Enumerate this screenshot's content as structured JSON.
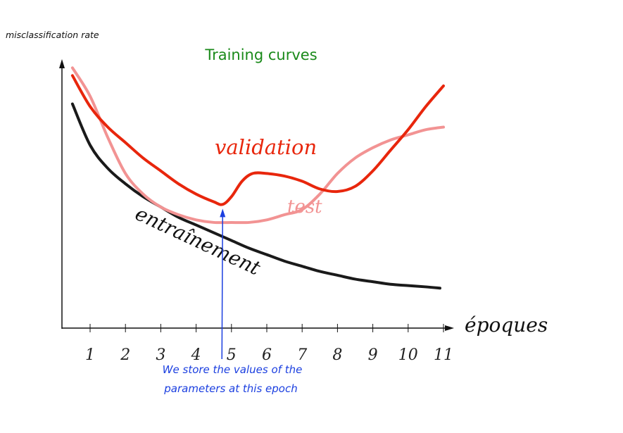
{
  "chart_data": {
    "type": "line",
    "title": "Training curves",
    "ylabel": "misclassification rate",
    "xlabel": "époques",
    "x_ticks": [
      "1",
      "2",
      "3",
      "4",
      "5",
      "6",
      "7",
      "8",
      "9",
      "10",
      "11"
    ],
    "xlim": [
      0.2,
      11.3
    ],
    "ylim": [
      0,
      1
    ],
    "grid": false,
    "series": [
      {
        "name": "entraînement",
        "color": "#1a1a1a",
        "x": [
          0.5,
          1.0,
          1.5,
          2.0,
          2.5,
          3.0,
          3.5,
          4.0,
          4.5,
          5.0,
          5.5,
          6.0,
          6.5,
          7.0,
          7.5,
          8.0,
          8.5,
          9.0,
          9.5,
          10.0,
          10.5,
          10.9
        ],
        "y": [
          0.87,
          0.71,
          0.62,
          0.56,
          0.51,
          0.47,
          0.43,
          0.4,
          0.37,
          0.34,
          0.31,
          0.285,
          0.26,
          0.24,
          0.22,
          0.205,
          0.19,
          0.18,
          0.17,
          0.165,
          0.16,
          0.155
        ]
      },
      {
        "name": "validation",
        "color": "#e8260c",
        "x": [
          0.5,
          1.0,
          1.5,
          2.0,
          2.5,
          3.0,
          3.5,
          4.0,
          4.5,
          4.75,
          5.0,
          5.3,
          5.6,
          6.0,
          6.5,
          7.0,
          7.5,
          8.0,
          8.5,
          9.0,
          9.5,
          10.0,
          10.5,
          11.0
        ],
        "y": [
          0.98,
          0.86,
          0.78,
          0.72,
          0.66,
          0.61,
          0.56,
          0.52,
          0.49,
          0.48,
          0.51,
          0.57,
          0.6,
          0.6,
          0.59,
          0.57,
          0.54,
          0.53,
          0.55,
          0.61,
          0.69,
          0.77,
          0.86,
          0.94
        ]
      },
      {
        "name": "test",
        "color": "#f29393",
        "x": [
          0.5,
          1.0,
          1.5,
          2.0,
          2.5,
          3.0,
          3.5,
          4.0,
          4.5,
          5.0,
          5.5,
          6.0,
          6.5,
          7.0,
          7.5,
          8.0,
          8.5,
          9.0,
          9.5,
          10.0,
          10.5,
          11.0
        ],
        "y": [
          1.01,
          0.9,
          0.74,
          0.6,
          0.52,
          0.47,
          0.44,
          0.42,
          0.41,
          0.41,
          0.41,
          0.42,
          0.44,
          0.46,
          0.52,
          0.6,
          0.66,
          0.7,
          0.73,
          0.75,
          0.77,
          0.78
        ]
      }
    ],
    "annotations": {
      "validation": "validation",
      "test": "test",
      "entrainement": "entraînement",
      "arrow_epoch": 4.75,
      "arrow_text_line1": "We store the values of the",
      "arrow_text_line2": "parameters at this epoch",
      "arrow_color": "#1b3fe0",
      "title_color": "#1a8a1a"
    }
  }
}
